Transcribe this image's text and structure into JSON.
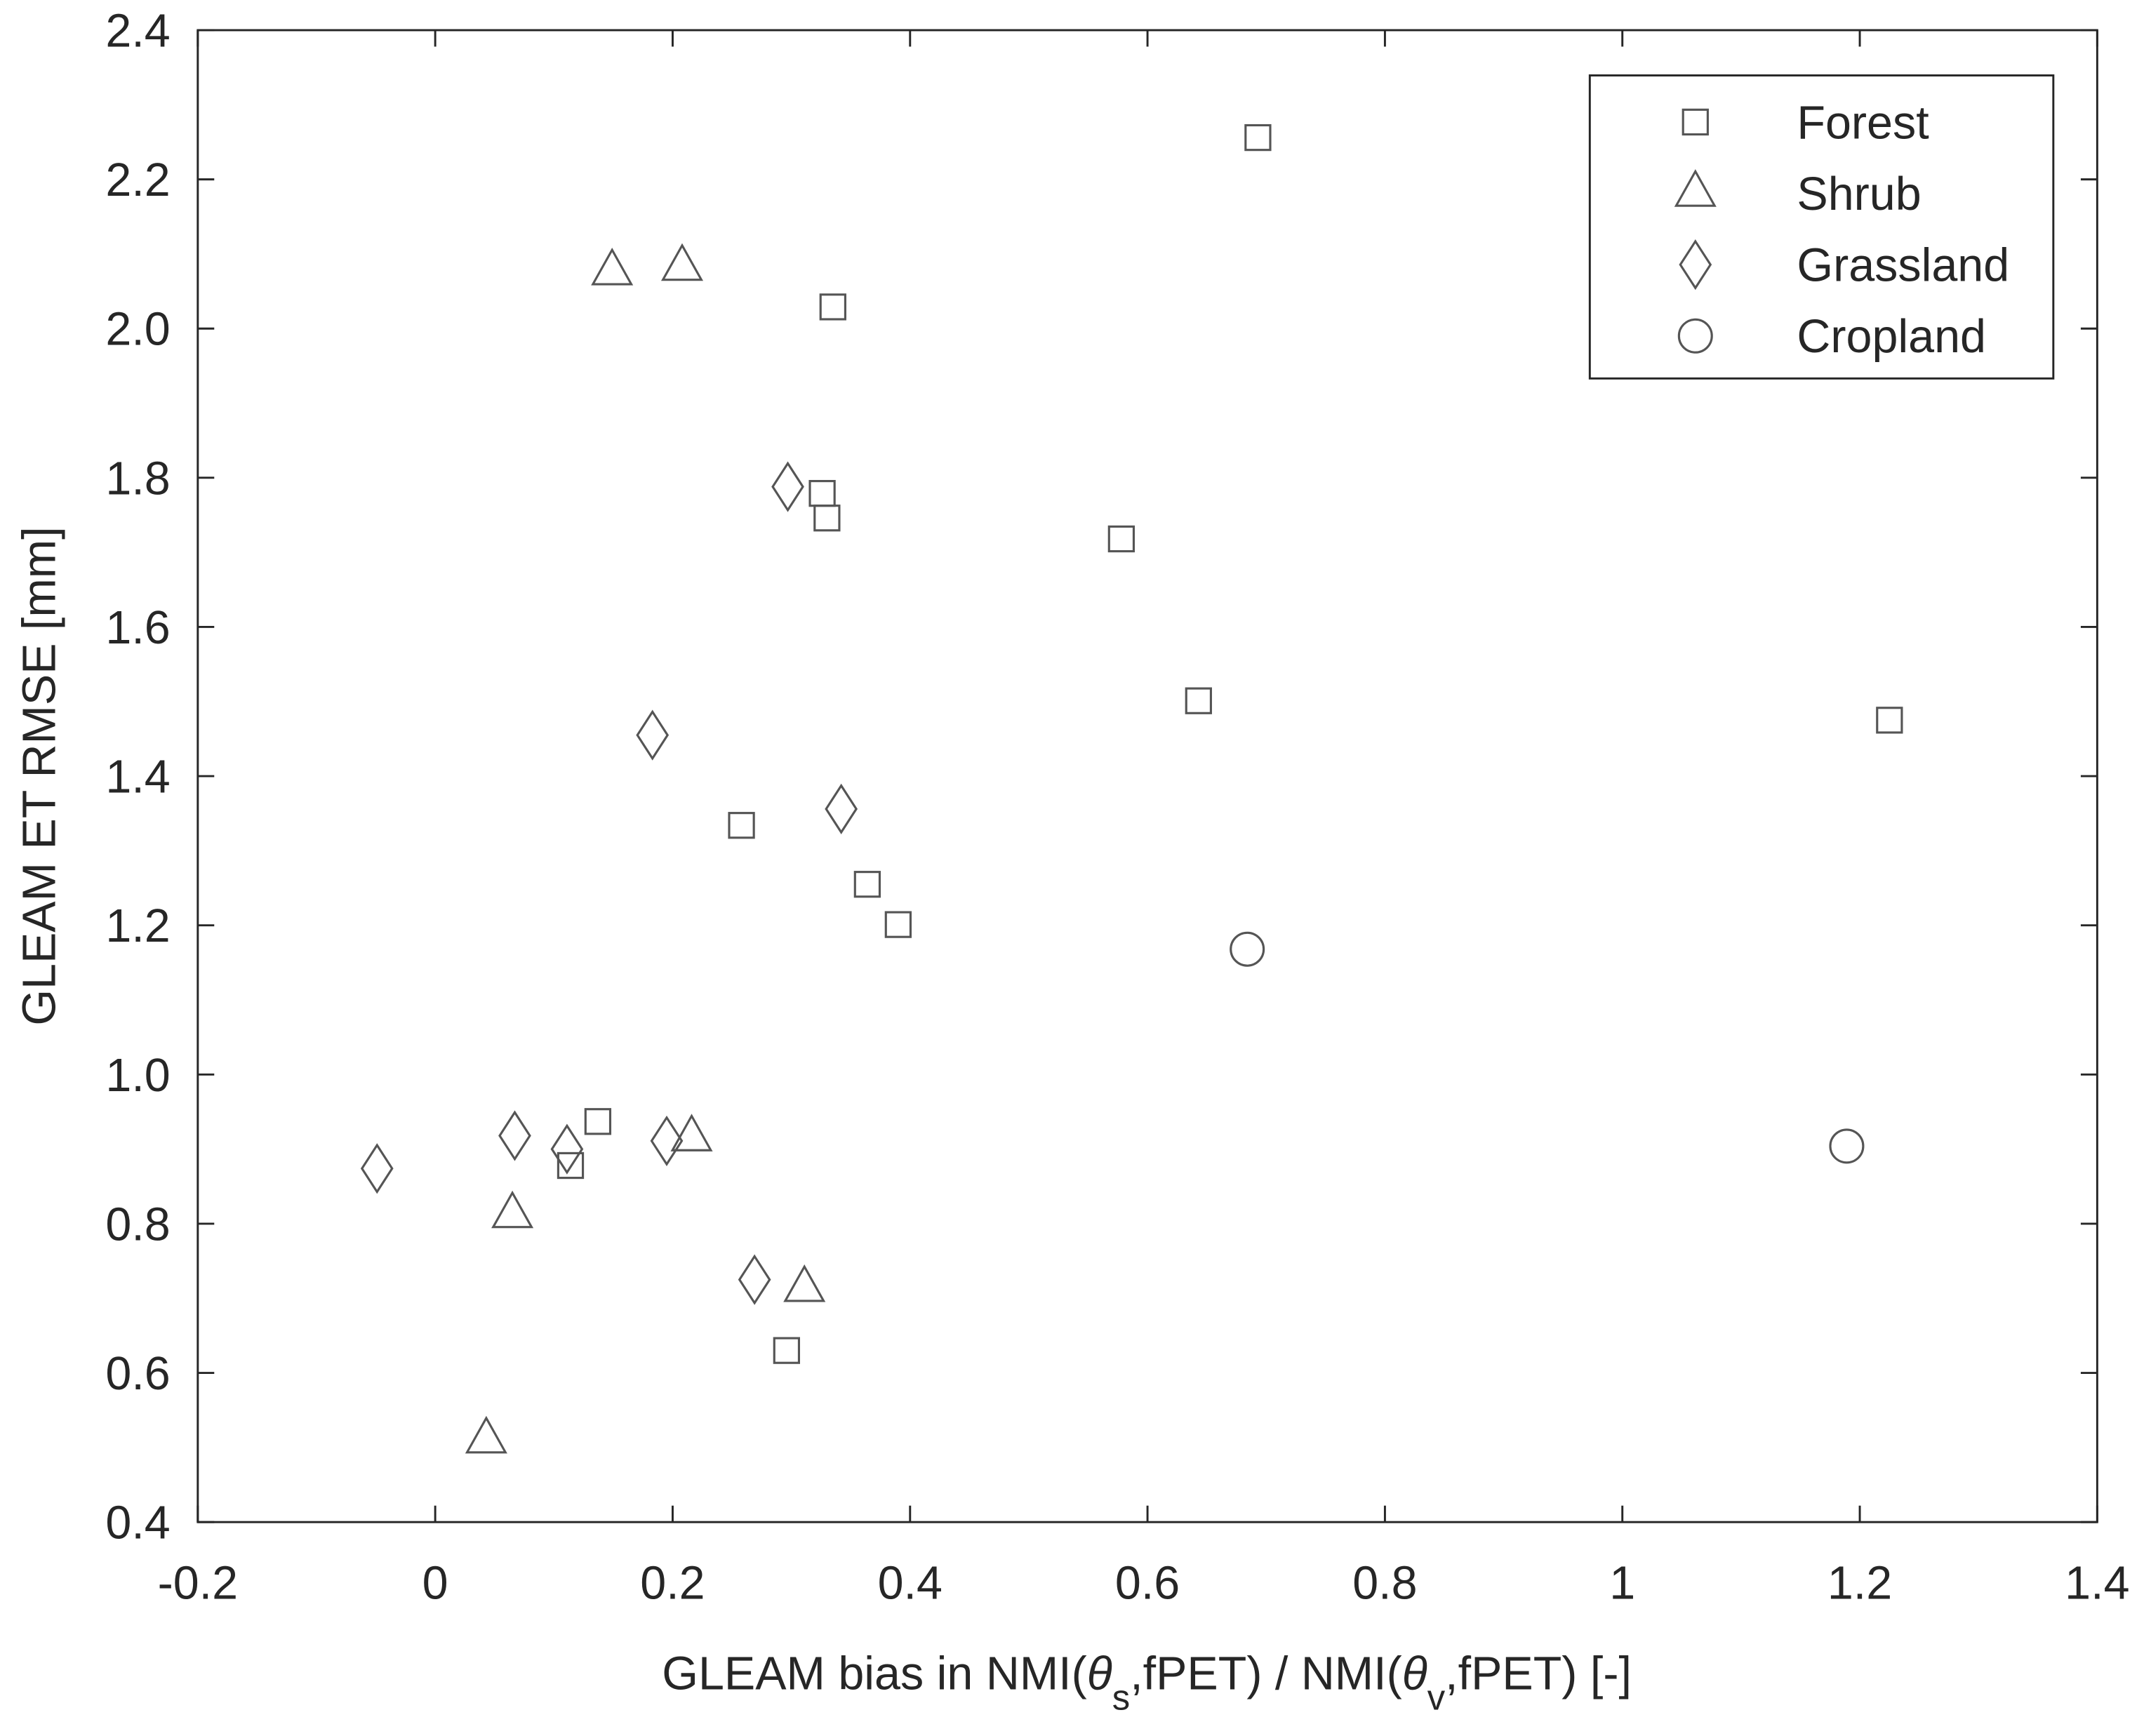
{
  "chart_data": {
    "type": "scatter",
    "xlabel_parts": [
      "GLEAM bias in NMI(",
      "θ",
      "s",
      ",fPET) / NMI(",
      "θ",
      "v",
      ",fPET) [-]"
    ],
    "ylabel": "GLEAM ET RMSE [mm]",
    "xlim": [
      -0.2,
      1.4
    ],
    "xticks": [
      -0.2,
      0,
      0.2,
      0.4,
      0.6,
      0.8,
      1,
      1.2,
      1.4
    ],
    "ylim": [
      0.4,
      2.4
    ],
    "yticks": [
      0.4,
      0.6,
      0.8,
      {
        "value": 1.0,
        "label": "1.0"
      },
      1.2,
      1.4,
      1.6,
      1.8,
      {
        "value": 2.0,
        "label": "2.0"
      },
      2.2,
      2.4
    ],
    "legend": "top-right",
    "series": [
      {
        "name": "Forest",
        "marker": "square",
        "color": "#555555",
        "x": [
          0.693,
          0.335,
          0.326,
          0.33,
          0.578,
          0.643,
          1.225,
          0.258,
          0.364,
          0.39,
          0.137,
          0.114,
          0.296
        ],
        "y": [
          2.256,
          2.029,
          1.779,
          1.746,
          1.718,
          1.501,
          1.475,
          1.334,
          1.255,
          1.201,
          0.937,
          0.878,
          0.63
        ]
      },
      {
        "name": "Shrub",
        "marker": "triangle",
        "color": "#555555",
        "x": [
          0.149,
          0.208,
          0.065,
          0.216,
          0.311,
          0.043
        ],
        "y": [
          2.076,
          2.082,
          0.812,
          0.915,
          0.713,
          0.51
        ]
      },
      {
        "name": "Grassland",
        "marker": "diamond",
        "color": "#555555",
        "x": [
          0.297,
          0.183,
          0.342,
          -0.049,
          0.067,
          0.111,
          0.195,
          0.269
        ],
        "y": [
          1.788,
          1.455,
          1.356,
          0.874,
          0.918,
          0.9,
          0.911,
          0.725
        ]
      },
      {
        "name": "Cropland",
        "marker": "circle",
        "color": "#555555",
        "x": [
          0.684,
          1.189
        ],
        "y": [
          1.168,
          0.904
        ]
      }
    ]
  }
}
